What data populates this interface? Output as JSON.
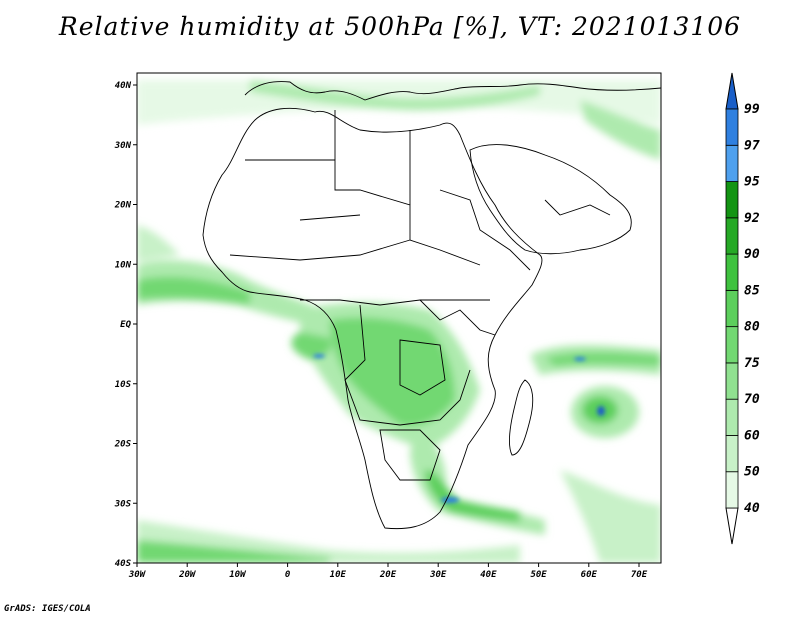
{
  "title": "Relative humidity at 500hPa [%], VT: 2021013106",
  "credit": "GrADS: IGES/COLA",
  "map": {
    "lon_ticks": [
      "30W",
      "20W",
      "10W",
      "0",
      "10E",
      "20E",
      "30E",
      "40E",
      "50E",
      "60E",
      "70E"
    ],
    "lat_ticks": [
      "40N",
      "30N",
      "20N",
      "10N",
      "EQ",
      "10S",
      "20S",
      "30S",
      "40S"
    ]
  },
  "colorbar": {
    "levels": [
      "99",
      "97",
      "95",
      "92",
      "90",
      "85",
      "80",
      "75",
      "70",
      "60",
      "50",
      "40"
    ],
    "bins": [
      {
        "range": "below 40",
        "color": "#ffffff"
      },
      {
        "range": "40-50",
        "color": "#e6f9e6"
      },
      {
        "range": "50-60",
        "color": "#c8f1c8"
      },
      {
        "range": "60-70",
        "color": "#aeeaae"
      },
      {
        "range": "70-75",
        "color": "#90e190"
      },
      {
        "range": "75-80",
        "color": "#72d872"
      },
      {
        "range": "80-85",
        "color": "#5ccf5c"
      },
      {
        "range": "85-90",
        "color": "#3fc23f"
      },
      {
        "range": "90-92",
        "color": "#26a926"
      },
      {
        "range": "92-95",
        "color": "#139413"
      },
      {
        "range": "95-97",
        "color": "#4ea0ee"
      },
      {
        "range": "97-99",
        "color": "#2f80e0"
      },
      {
        "range": "above 99",
        "color": "#1a5fc8"
      }
    ]
  }
}
